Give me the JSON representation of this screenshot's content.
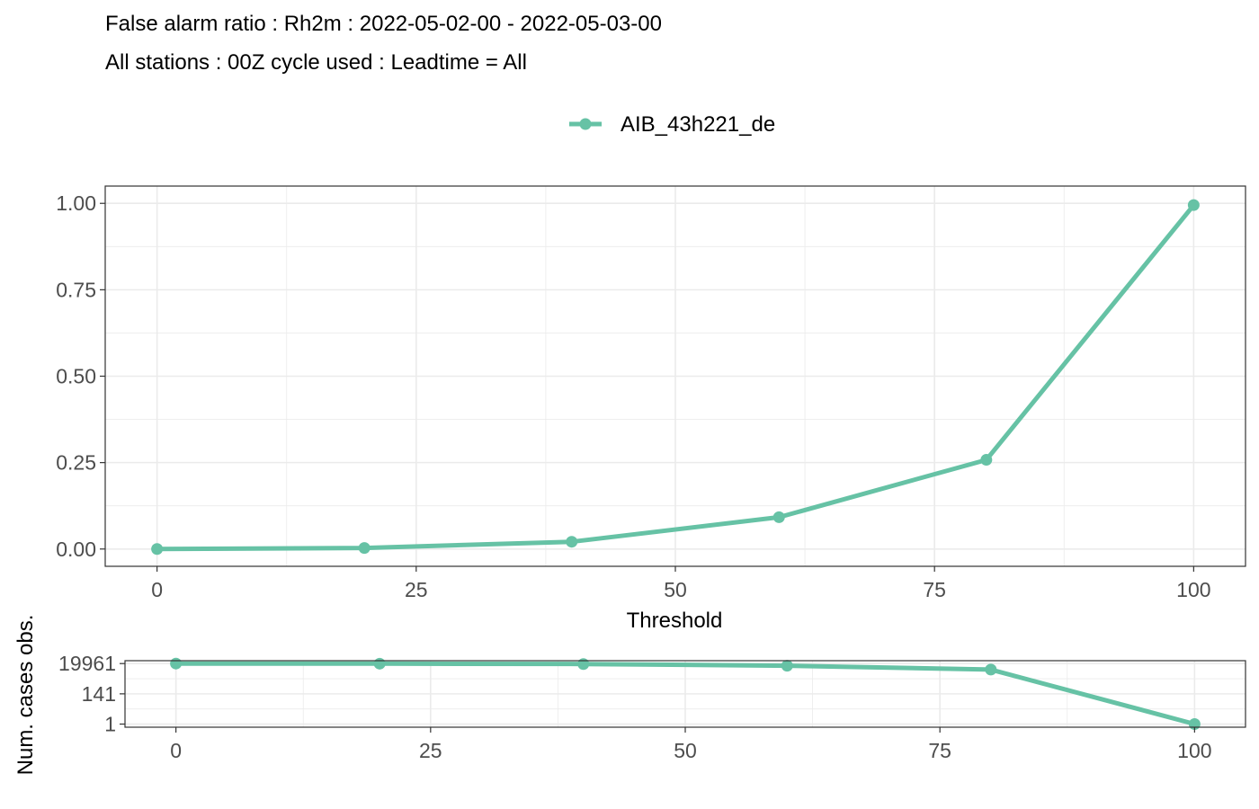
{
  "header": {
    "title_line1": "False alarm ratio : Rh2m : 2022-05-02-00 - 2022-05-03-00",
    "title_line2": "All stations : 00Z cycle used : Leadtime = All"
  },
  "legend": {
    "position": "top",
    "entries": [
      "AIB_43h221_de"
    ]
  },
  "colors": {
    "series": "#66c2a5",
    "grid": "#ebebeb",
    "border": "#333333",
    "tick_text": "#4d4d4d"
  },
  "chart_data": [
    {
      "type": "line",
      "x": [
        0,
        20,
        40,
        60,
        80,
        100
      ],
      "series": [
        {
          "name": "AIB_43h221_de",
          "values": [
            0.0,
            0.003,
            0.021,
            0.092,
            0.258,
            0.995
          ]
        }
      ],
      "xlabel": "Threshold",
      "ylabel": "",
      "xlim": [
        -5,
        105
      ],
      "ylim": [
        -0.05,
        1.05
      ],
      "x_ticks": [
        0,
        25,
        50,
        75,
        100
      ],
      "x_tick_labels": [
        "0",
        "25",
        "50",
        "75",
        "100"
      ],
      "y_ticks": [
        0,
        0.25,
        0.5,
        0.75,
        1.0
      ],
      "y_tick_labels": [
        "0.00",
        "0.25",
        "0.50",
        "0.75",
        "1.00"
      ],
      "grid": true
    },
    {
      "type": "line",
      "scale_y": "log",
      "x": [
        0,
        20,
        40,
        60,
        80,
        100
      ],
      "series": [
        {
          "name": "AIB_43h221_de",
          "values": [
            19961,
            19600,
            18500,
            14000,
            7500,
            1
          ]
        }
      ],
      "xlabel": "",
      "ylabel": "Num. cases obs.",
      "xlim": [
        -5,
        105
      ],
      "ylim": [
        0.6,
        32000
      ],
      "x_ticks": [
        0,
        25,
        50,
        75,
        100
      ],
      "x_tick_labels": [
        "0",
        "25",
        "50",
        "75",
        "100"
      ],
      "y_ticks": [
        1,
        141,
        19961
      ],
      "y_tick_labels": [
        "1",
        "141",
        "19961"
      ],
      "grid": true
    }
  ]
}
